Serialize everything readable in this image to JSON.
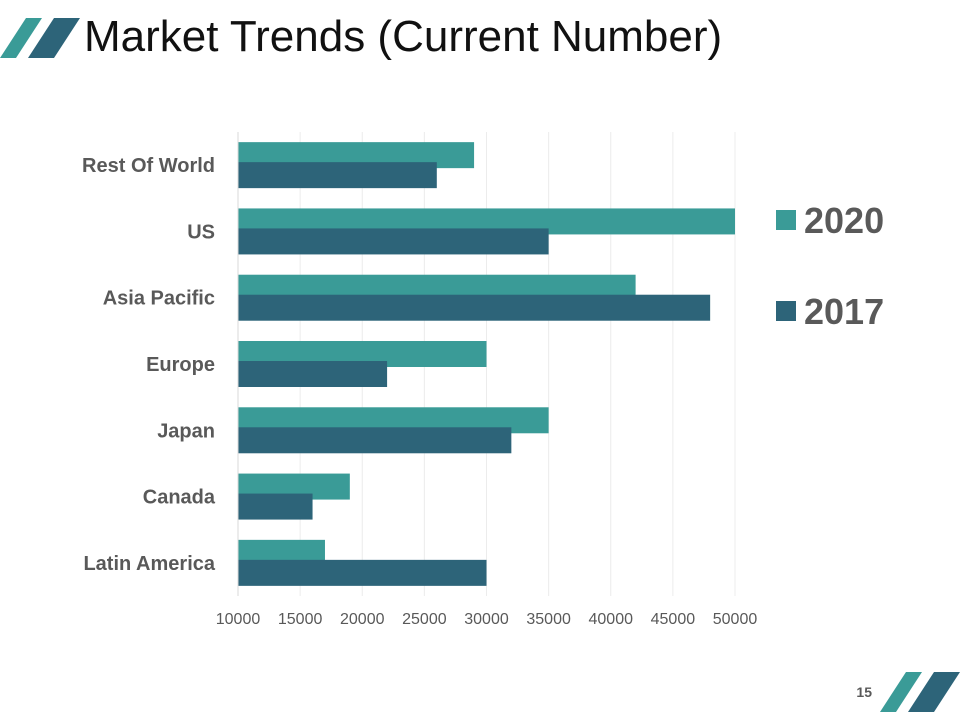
{
  "slide": {
    "title": "Market Trends (Current Number)",
    "page_number": "15"
  },
  "colors": {
    "series_2020": "#3a9b97",
    "series_2017": "#2d6479",
    "text": "#595959",
    "axis": "#d9d9d9"
  },
  "chart_data": {
    "type": "bar",
    "orientation": "horizontal",
    "title": "",
    "xlabel": "",
    "ylabel": "",
    "categories": [
      "Rest Of World",
      "US",
      "Asia Pacific",
      "Europe",
      "Japan",
      "Canada",
      "Latin America"
    ],
    "series": [
      {
        "name": "2020",
        "color": "#3a9b97",
        "values": [
          29000,
          50000,
          42000,
          30000,
          35000,
          19000,
          17000
        ]
      },
      {
        "name": "2017",
        "color": "#2d6479",
        "values": [
          26000,
          35000,
          48000,
          22000,
          32000,
          16000,
          30000
        ]
      }
    ],
    "xlim": [
      10000,
      50000
    ],
    "xticks": [
      10000,
      15000,
      20000,
      25000,
      30000,
      35000,
      40000,
      45000,
      50000
    ],
    "legend": {
      "position": "right",
      "entries": [
        "2020",
        "2017"
      ]
    },
    "grid": true
  }
}
